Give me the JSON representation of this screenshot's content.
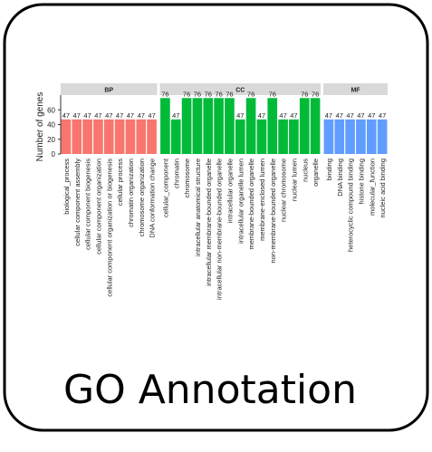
{
  "caption": "GO Annotation",
  "chart_data": {
    "type": "bar",
    "y_label": "Number of genes",
    "ylim": [
      0,
      80
    ],
    "yticks": [
      0,
      20,
      40,
      60
    ],
    "facets": [
      {
        "name": "BP",
        "color": "#f8766d",
        "categories": [
          "biological_process",
          "cellular component assembly",
          "cellular component biogenesis",
          "cellular component organization",
          "cellular component organization or biogenesis",
          "cellular process",
          "chromatin organization",
          "chromosome organization",
          "DNA conformation change"
        ],
        "values": [
          47,
          47,
          47,
          47,
          47,
          47,
          47,
          47,
          47
        ]
      },
      {
        "name": "CC",
        "color": "#00ba38",
        "categories": [
          "cellular_component",
          "chromatin",
          "chromosome",
          "intracellular anatomical structure",
          "intracellular membrane-bounded organelle",
          "intracellular non-membrane-bounded organelle",
          "intracellular organelle",
          "intracellular organelle lumen",
          "membrane-bounded organelle",
          "membrane-enclosed lumen",
          "non-membrane-bounded organelle",
          "nuclear chromosome",
          "nuclear lumen",
          "nucleus",
          "organelle"
        ],
        "values": [
          76,
          47,
          76,
          76,
          76,
          76,
          76,
          47,
          76,
          47,
          76,
          47,
          47,
          76,
          76
        ]
      },
      {
        "name": "MF",
        "color": "#619cff",
        "categories": [
          "binding",
          "DNA binding",
          "heterocyclic compound binding",
          "histone binding",
          "molecular_function",
          "nucleic acid binding"
        ],
        "values": [
          47,
          47,
          47,
          47,
          47,
          47
        ]
      }
    ]
  }
}
